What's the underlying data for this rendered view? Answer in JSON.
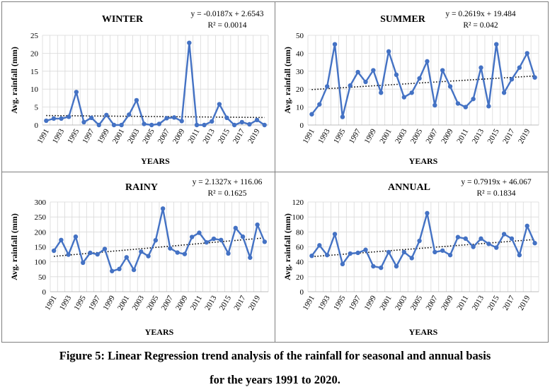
{
  "figure": {
    "caption_line1": "Figure 5: Linear Regression trend analysis of the rainfall for seasonal and annual basis",
    "caption_line2": "for the years 1991 to 2020."
  },
  "colors": {
    "series": "#4472c4",
    "trend": "#000000",
    "grid": "#d9d9d9",
    "frame": "#7f7f7f"
  },
  "chart_data": [
    {
      "type": "line",
      "title": "WINTER",
      "equation": "y = -0.0187x + 2.6543",
      "r2": "R² = 0.0014",
      "xlabel": "YEARS",
      "ylabel": "Avg. rainfall (mm)",
      "ylim": [
        0,
        25
      ],
      "yticks": [
        0,
        5,
        10,
        15,
        20,
        25
      ],
      "xticks": [
        "1991",
        "1993",
        "1995",
        "1997",
        "1999",
        "2001",
        "2003",
        "2005",
        "2007",
        "2009",
        "2011",
        "2013",
        "2015",
        "2017",
        "2019"
      ],
      "x": [
        1991,
        1992,
        1993,
        1994,
        1995,
        1996,
        1997,
        1998,
        1999,
        2000,
        2001,
        2002,
        2003,
        2004,
        2005,
        2006,
        2007,
        2008,
        2009,
        2010,
        2011,
        2012,
        2013,
        2014,
        2015,
        2016,
        2017,
        2018,
        2019,
        2020
      ],
      "values": [
        1.2,
        1.8,
        1.8,
        2.3,
        9.2,
        0.8,
        2.0,
        0.0,
        2.8,
        0.0,
        0.0,
        2.9,
        6.9,
        0.3,
        0.0,
        0.3,
        1.9,
        2.1,
        1.1,
        22.9,
        0.0,
        0.0,
        1.0,
        5.8,
        2.0,
        0.0,
        0.8,
        0.2,
        1.4,
        0.0
      ],
      "trendline": {
        "slope": -0.0187,
        "intercept": 2.6543
      },
      "grid": true
    },
    {
      "type": "line",
      "title": "SUMMER",
      "equation": "y = 0.2619x + 19.484",
      "r2": "R² = 0.042",
      "xlabel": "YEARS",
      "ylabel": "Avg. rainfall (mm)",
      "ylim": [
        0,
        50
      ],
      "yticks": [
        0,
        10,
        20,
        30,
        40,
        50
      ],
      "xticks": [
        "1991",
        "1993",
        "1995",
        "1997",
        "1999",
        "2001",
        "2003",
        "2005",
        "2007",
        "2009",
        "2011",
        "2013",
        "2015",
        "2017",
        "2019"
      ],
      "x": [
        1991,
        1992,
        1993,
        1994,
        1995,
        1996,
        1997,
        1998,
        1999,
        2000,
        2001,
        2002,
        2003,
        2004,
        2005,
        2006,
        2007,
        2008,
        2009,
        2010,
        2011,
        2012,
        2013,
        2014,
        2015,
        2016,
        2017,
        2018,
        2019,
        2020
      ],
      "values": [
        6,
        11.5,
        21.5,
        45,
        4.5,
        22,
        29.5,
        24,
        30.5,
        18,
        41,
        28,
        15.5,
        18,
        26,
        35.5,
        11,
        30.5,
        21.5,
        12,
        10,
        14.5,
        32,
        10.5,
        45,
        18,
        25.5,
        32,
        40,
        26.5
      ],
      "trendline": {
        "slope": 0.2619,
        "intercept": 19.484
      },
      "grid": true
    },
    {
      "type": "line",
      "title": "RAINY",
      "equation": "y = 2.1327x + 116.06",
      "r2": "R² = 0.1625",
      "xlabel": "YEARS",
      "ylabel": "Avg. rainfall (mm)",
      "ylim": [
        0,
        300
      ],
      "yticks": [
        0,
        50,
        100,
        150,
        200,
        250,
        300
      ],
      "xticks": [
        "1991",
        "1993",
        "1995",
        "1997",
        "1999",
        "2001",
        "2003",
        "2005",
        "2007",
        "2009",
        "2011",
        "2013",
        "2015",
        "2017",
        "2019"
      ],
      "x": [
        1991,
        1992,
        1993,
        1994,
        1995,
        1996,
        1997,
        1998,
        1999,
        2000,
        2001,
        2002,
        2003,
        2004,
        2005,
        2006,
        2007,
        2008,
        2009,
        2010,
        2011,
        2012,
        2013,
        2014,
        2015,
        2016,
        2017,
        2018,
        2019,
        2020
      ],
      "values": [
        137,
        173,
        124,
        184,
        97,
        130,
        125,
        143,
        69,
        76,
        115,
        73,
        134,
        119,
        172,
        278,
        145,
        131,
        126,
        183,
        197,
        165,
        177,
        173,
        128,
        213,
        184,
        114,
        224,
        167
      ],
      "trendline": {
        "slope": 2.1327,
        "intercept": 116.06
      },
      "grid": true
    },
    {
      "type": "line",
      "title": "ANNUAL",
      "equation": "y = 0.7919x + 46.067",
      "r2": "R² = 0.1834",
      "xlabel": "YEARS",
      "ylabel": "Avg. rainfall (mm)",
      "ylim": [
        0,
        120
      ],
      "yticks": [
        0,
        20,
        40,
        60,
        80,
        100,
        120
      ],
      "xticks": [
        "1991",
        "1993",
        "1995",
        "1997",
        "1999",
        "2001",
        "2003",
        "2005",
        "2007",
        "2009",
        "2011",
        "2013",
        "2015",
        "2017",
        "2019"
      ],
      "x": [
        1991,
        1992,
        1993,
        1994,
        1995,
        1996,
        1997,
        1998,
        1999,
        2000,
        2001,
        2002,
        2003,
        2004,
        2005,
        2006,
        2007,
        2008,
        2009,
        2010,
        2011,
        2012,
        2013,
        2014,
        2015,
        2016,
        2017,
        2018,
        2019,
        2020
      ],
      "values": [
        48,
        62,
        49,
        77,
        37,
        51,
        52,
        56,
        34,
        32,
        53,
        34,
        53,
        45,
        68,
        105,
        53,
        55,
        49,
        73,
        71,
        60,
        71,
        64,
        59,
        77,
        71,
        49,
        88,
        65
      ],
      "trendline": {
        "slope": 0.7919,
        "intercept": 46.067
      },
      "grid": true
    }
  ]
}
